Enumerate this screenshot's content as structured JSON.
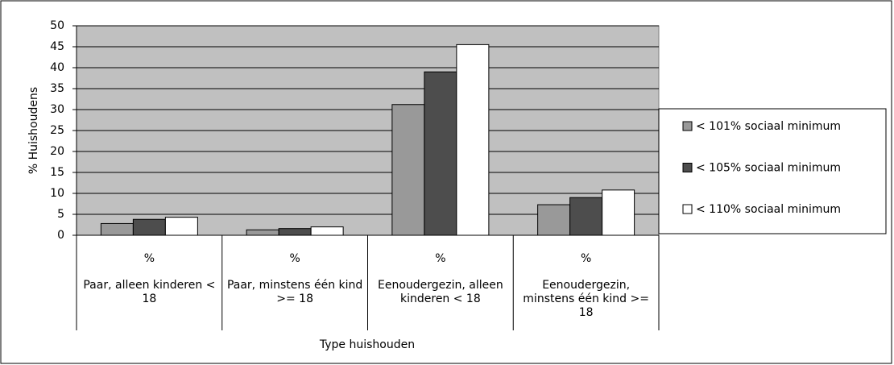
{
  "chart_data": {
    "type": "bar",
    "y_label": "% Huishoudens",
    "x_label": "Type huishouden",
    "categories": [
      "Paar, alleen kinderen < 18",
      "Paar, minstens één kind >= 18",
      "Eenoudergezin, alleen kinderen < 18",
      "Eenoudergezin, minstens één kind >= 18"
    ],
    "subcategories": [
      "%",
      "%",
      "%",
      "%"
    ],
    "series": [
      {
        "name": "< 101% sociaal minimum",
        "color": "#999999",
        "values": [
          2.8,
          1.3,
          31.2,
          7.3
        ]
      },
      {
        "name": "< 105% sociaal minimum",
        "color": "#4d4d4d",
        "values": [
          3.8,
          1.6,
          39,
          9.0
        ]
      },
      {
        "name": "< 110% sociaal minimum",
        "color": "#ffffff",
        "values": [
          4.3,
          2.0,
          45.5,
          10.8
        ]
      }
    ],
    "ylim": [
      0,
      50
    ],
    "yticks": [
      0,
      5,
      10,
      15,
      20,
      25,
      30,
      35,
      40,
      45,
      50
    ],
    "grid": true,
    "plot_background": "#c0c0c0",
    "legend": "right"
  }
}
